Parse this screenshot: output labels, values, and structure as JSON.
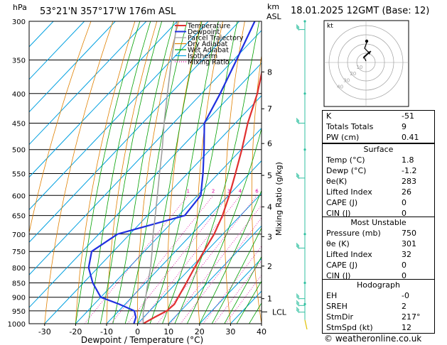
{
  "header": {
    "hpa": "hPa",
    "location": "53°21'N  357°17'W  176m  ASL",
    "km": "km",
    "asl": "ASL",
    "date": "18.01.2025  12GMT  (Base: 12)"
  },
  "footer": {
    "credit": "© weatheronline.co.uk"
  },
  "colors": {
    "temperature": "#e03030",
    "dewpoint": "#2030e0",
    "parcel": "#a0a0a0",
    "dry_adiabat": "#e08000",
    "wet_adiabat": "#00a000",
    "isotherm": "#00a0e0",
    "mixing_ratio": "#e000a0",
    "wind_barb": "#30c0a0"
  },
  "chart_data": {
    "type": "line",
    "xlabel": "Dewpoint / Temperature (°C)",
    "ylabel": "hPa",
    "right_label": "Mixing Ratio (g/kg)",
    "xlim": [
      -35,
      40
    ],
    "ylim": [
      1000,
      300
    ],
    "x_ticks": [
      "-30",
      "-20",
      "-10",
      "0",
      "10",
      "20",
      "30",
      "40"
    ],
    "pressure_levels": [
      300,
      350,
      400,
      450,
      500,
      550,
      600,
      650,
      700,
      750,
      800,
      850,
      900,
      950,
      1000
    ],
    "km_ticks": [
      {
        "label": "1",
        "p": 905
      },
      {
        "label": "2",
        "p": 795
      },
      {
        "label": "3",
        "p": 707
      },
      {
        "label": "4",
        "p": 628
      },
      {
        "label": "5",
        "p": 554
      },
      {
        "label": "6",
        "p": 488
      },
      {
        "label": "7",
        "p": 425
      },
      {
        "label": "8",
        "p": 367
      }
    ],
    "lcl": {
      "label": "LCL",
      "p": 954
    },
    "mixing_ratio_labels": [
      "1",
      "2",
      "3",
      "4",
      "6",
      "8",
      "10",
      "16",
      "20",
      "25"
    ],
    "mixing_ratio_values": [
      1,
      2,
      3,
      4,
      6,
      8,
      10,
      16,
      20,
      25
    ],
    "legend": [
      "Temperature",
      "Dewpoint",
      "Parcel Trajectory",
      "Dry Adiabat",
      "Wet Adiabat",
      "Isotherm",
      "Mixing Ratio"
    ],
    "series": [
      {
        "name": "Temperature",
        "points": [
          [
            1000,
            1.8
          ],
          [
            975,
            3.5
          ],
          [
            950,
            5.5
          ],
          [
            925,
            5.9
          ],
          [
            900,
            5.0
          ],
          [
            850,
            3.2
          ],
          [
            800,
            1.2
          ],
          [
            750,
            -0.8
          ],
          [
            700,
            -2.8
          ],
          [
            650,
            -5.8
          ],
          [
            600,
            -9.8
          ],
          [
            550,
            -14.5
          ],
          [
            500,
            -19.8
          ],
          [
            450,
            -26
          ],
          [
            400,
            -32
          ],
          [
            350,
            -40
          ],
          [
            300,
            -47.5
          ]
        ]
      },
      {
        "name": "Dewpoint",
        "points": [
          [
            1000,
            -1.2
          ],
          [
            975,
            -2.5
          ],
          [
            950,
            -5
          ],
          [
            925,
            -12
          ],
          [
            900,
            -20
          ],
          [
            850,
            -27
          ],
          [
            800,
            -33
          ],
          [
            750,
            -37
          ],
          [
            700,
            -34
          ],
          [
            650,
            -18
          ],
          [
            600,
            -19
          ],
          [
            550,
            -25
          ],
          [
            500,
            -32
          ],
          [
            450,
            -40
          ],
          [
            400,
            -44
          ],
          [
            350,
            -49
          ],
          [
            300,
            -55
          ]
        ]
      },
      {
        "name": "Parcel Trajectory",
        "points": [
          [
            1000,
            1.8
          ],
          [
            954,
            -1.8
          ],
          [
            900,
            -5.5
          ],
          [
            850,
            -9.2
          ],
          [
            800,
            -13
          ],
          [
            750,
            -17.5
          ],
          [
            700,
            -22.5
          ],
          [
            650,
            -27.5
          ],
          [
            600,
            -33
          ],
          [
            550,
            -39
          ],
          [
            500,
            -45.5
          ],
          [
            450,
            -53
          ],
          [
            400,
            -61
          ],
          [
            350,
            -70
          ],
          [
            300,
            -80
          ]
        ]
      }
    ]
  },
  "hodograph": {
    "label": "kt",
    "rings": [
      "10",
      "20",
      "30",
      "40"
    ]
  },
  "indices": {
    "rows": [
      {
        "label": "K",
        "value": "-51"
      },
      {
        "label": "Totals Totals",
        "value": "9"
      },
      {
        "label": "PW (cm)",
        "value": "0.41"
      }
    ]
  },
  "surface": {
    "title": "Surface",
    "rows": [
      {
        "label": "Temp (°C)",
        "value": "1.8"
      },
      {
        "label": "Dewp (°C)",
        "value": "-1.2"
      },
      {
        "label": "θe(K)",
        "value": "283"
      },
      {
        "label": "Lifted Index",
        "value": "26"
      },
      {
        "label": "CAPE (J)",
        "value": "0"
      },
      {
        "label": "CIN (J)",
        "value": "0"
      }
    ]
  },
  "most_unstable": {
    "title": "Most Unstable",
    "rows": [
      {
        "label": "Pressure (mb)",
        "value": "750"
      },
      {
        "label": "θe (K)",
        "value": "301"
      },
      {
        "label": "Lifted Index",
        "value": "32"
      },
      {
        "label": "CAPE (J)",
        "value": "0"
      },
      {
        "label": "CIN (J)",
        "value": "0"
      }
    ]
  },
  "hodograph_table": {
    "title": "Hodograph",
    "rows": [
      {
        "label": "EH",
        "value": "-0"
      },
      {
        "label": "SREH",
        "value": "2"
      },
      {
        "label": "StmDir",
        "value": "217°"
      },
      {
        "label": "StmSpd (kt)",
        "value": "12"
      }
    ]
  }
}
